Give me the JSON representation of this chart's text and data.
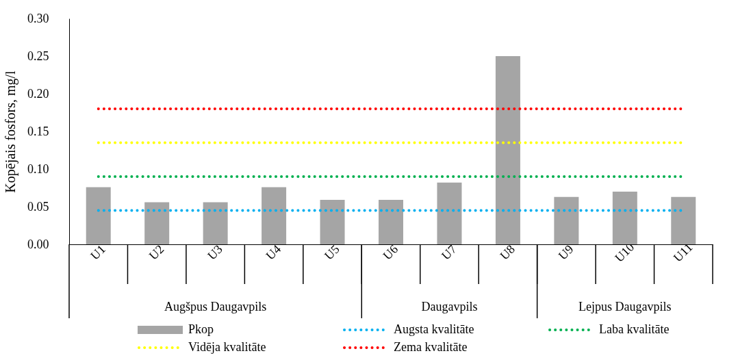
{
  "chart_data": {
    "type": "bar",
    "ylabel": "Kopējais fosfors, mg/l",
    "categories": [
      "U1",
      "U2",
      "U3",
      "U4",
      "U5",
      "U6",
      "U7",
      "U8",
      "U9",
      "U10",
      "U11"
    ],
    "series": [
      {
        "name": "Pkop",
        "color": "#a5a5a5",
        "values": [
          0.076,
          0.056,
          0.056,
          0.076,
          0.059,
          0.059,
          0.082,
          0.25,
          0.063,
          0.07,
          0.063
        ]
      },
      {
        "name": "Augsta kvalitāte",
        "type": "line",
        "line_style": "dotted",
        "color": "#00b0f0",
        "values": [
          0.045,
          0.045,
          0.045,
          0.045,
          0.045,
          0.045,
          0.045,
          0.045,
          0.045,
          0.045,
          0.045
        ]
      },
      {
        "name": "Laba kvalitāte",
        "type": "line",
        "line_style": "dotted",
        "color": "#00b050",
        "values": [
          0.09,
          0.09,
          0.09,
          0.09,
          0.09,
          0.09,
          0.09,
          0.09,
          0.09,
          0.09,
          0.09
        ]
      },
      {
        "name": "Vidēja kvalitāte",
        "type": "line",
        "line_style": "dotted",
        "color": "#ffff00",
        "values": [
          0.135,
          0.135,
          0.135,
          0.135,
          0.135,
          0.135,
          0.135,
          0.135,
          0.135,
          0.135,
          0.135
        ]
      },
      {
        "name": "Zema kvalitāte",
        "type": "line",
        "line_style": "dotted",
        "color": "#ff0000",
        "values": [
          0.18,
          0.18,
          0.18,
          0.18,
          0.18,
          0.18,
          0.18,
          0.18,
          0.18,
          0.18,
          0.18
        ]
      }
    ],
    "ylim": [
      0,
      0.3
    ],
    "yticks": [
      {
        "value": 0,
        "label": "0.00"
      },
      {
        "value": 0.05,
        "label": "0.05"
      },
      {
        "value": 0.1,
        "label": "0.10"
      },
      {
        "value": 0.15,
        "label": "0.15"
      },
      {
        "value": 0.2,
        "label": "0.20"
      },
      {
        "value": 0.25,
        "label": "0.25"
      },
      {
        "value": 0.3,
        "label": "0.30"
      }
    ],
    "legend": "bottom",
    "annotations": [
      "Augšpus Daugavpils",
      "Daugavpils",
      "Lejpus Daugavpils"
    ]
  }
}
